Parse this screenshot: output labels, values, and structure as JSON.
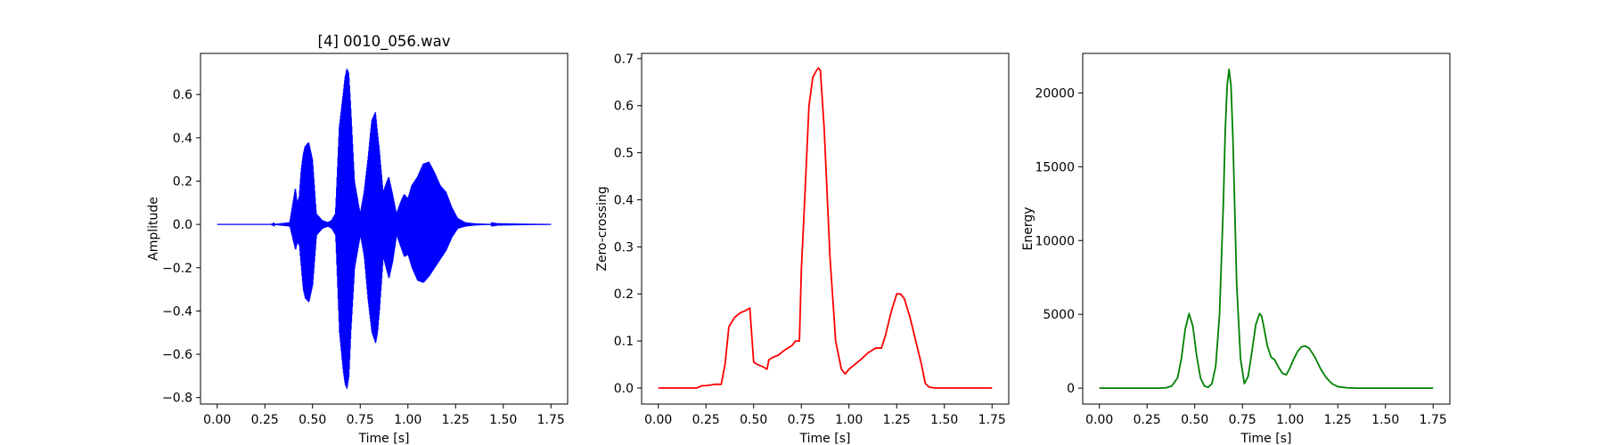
{
  "chart_data": [
    {
      "type": "line",
      "title": "[4] 0010_056.wav",
      "xlabel": "Time [s]",
      "ylabel": "Amplitude",
      "xlim": [
        -0.0875,
        1.8375
      ],
      "ylim": [
        -0.83,
        0.79
      ],
      "xticks": [
        0.0,
        0.25,
        0.5,
        0.75,
        1.0,
        1.25,
        1.5,
        1.75
      ],
      "xtick_labels": [
        "0.00",
        "0.25",
        "0.50",
        "0.75",
        "1.00",
        "1.25",
        "1.50",
        "1.75"
      ],
      "yticks": [
        -0.8,
        -0.6,
        -0.4,
        -0.2,
        0.0,
        0.2,
        0.4,
        0.6
      ],
      "ytick_labels": [
        "−0.8",
        "−0.6",
        "−0.4",
        "−0.2",
        "0.0",
        "0.2",
        "0.4",
        "0.6"
      ],
      "grid": false,
      "series": [
        {
          "color": "#0000ff",
          "style": "waveform",
          "envelope_x": [
            0.0,
            0.28,
            0.38,
            0.41,
            0.42,
            0.43,
            0.44,
            0.45,
            0.46,
            0.48,
            0.5,
            0.52,
            0.55,
            0.58,
            0.6,
            0.62,
            0.64,
            0.66,
            0.67,
            0.68,
            0.69,
            0.7,
            0.72,
            0.75,
            0.77,
            0.79,
            0.81,
            0.83,
            0.84,
            0.85,
            0.87,
            0.89,
            0.9,
            0.92,
            0.94,
            0.96,
            0.98,
            1.0,
            1.02,
            1.05,
            1.08,
            1.11,
            1.14,
            1.17,
            1.2,
            1.23,
            1.26,
            1.3,
            1.35,
            1.4,
            1.47,
            1.75
          ],
          "envelope_upper": [
            0.0,
            0.0,
            0.01,
            0.17,
            0.1,
            0.13,
            0.25,
            0.32,
            0.36,
            0.38,
            0.3,
            0.05,
            0.02,
            0.01,
            0.02,
            0.05,
            0.45,
            0.6,
            0.68,
            0.72,
            0.7,
            0.55,
            0.2,
            0.05,
            0.15,
            0.3,
            0.48,
            0.52,
            0.43,
            0.35,
            0.15,
            0.2,
            0.22,
            0.14,
            0.05,
            0.1,
            0.14,
            0.12,
            0.18,
            0.22,
            0.28,
            0.29,
            0.24,
            0.18,
            0.15,
            0.08,
            0.03,
            0.01,
            0.005,
            0.003,
            0.001,
            0.0
          ],
          "envelope_lower": [
            0.0,
            0.0,
            -0.01,
            -0.12,
            -0.08,
            -0.1,
            -0.2,
            -0.3,
            -0.34,
            -0.36,
            -0.28,
            -0.05,
            -0.02,
            -0.01,
            -0.02,
            -0.05,
            -0.5,
            -0.68,
            -0.74,
            -0.76,
            -0.7,
            -0.5,
            -0.2,
            -0.05,
            -0.15,
            -0.35,
            -0.5,
            -0.55,
            -0.5,
            -0.4,
            -0.15,
            -0.22,
            -0.25,
            -0.17,
            -0.05,
            -0.1,
            -0.15,
            -0.14,
            -0.2,
            -0.26,
            -0.27,
            -0.24,
            -0.2,
            -0.16,
            -0.12,
            -0.06,
            -0.02,
            -0.01,
            -0.005,
            -0.003,
            -0.001,
            0.0
          ]
        }
      ]
    },
    {
      "type": "line",
      "title": "",
      "xlabel": "Time [s]",
      "ylabel": "Zero-crossing",
      "xlim": [
        -0.0875,
        1.8375
      ],
      "ylim": [
        -0.034,
        0.711
      ],
      "xticks": [
        0.0,
        0.25,
        0.5,
        0.75,
        1.0,
        1.25,
        1.5,
        1.75
      ],
      "xtick_labels": [
        "0.00",
        "0.25",
        "0.50",
        "0.75",
        "1.00",
        "1.25",
        "1.50",
        "1.75"
      ],
      "yticks": [
        0.0,
        0.1,
        0.2,
        0.3,
        0.4,
        0.5,
        0.6,
        0.7
      ],
      "ytick_labels": [
        "0.0",
        "0.1",
        "0.2",
        "0.3",
        "0.4",
        "0.5",
        "0.6",
        "0.7"
      ],
      "grid": false,
      "series": [
        {
          "color": "#ff0000",
          "x": [
            0.0,
            0.2,
            0.23,
            0.25,
            0.3,
            0.33,
            0.35,
            0.37,
            0.4,
            0.43,
            0.46,
            0.48,
            0.5,
            0.52,
            0.55,
            0.57,
            0.58,
            0.6,
            0.63,
            0.66,
            0.7,
            0.72,
            0.74,
            0.75,
            0.77,
            0.79,
            0.81,
            0.83,
            0.84,
            0.85,
            0.87,
            0.9,
            0.93,
            0.96,
            0.98,
            1.0,
            1.03,
            1.06,
            1.1,
            1.14,
            1.17,
            1.19,
            1.22,
            1.25,
            1.27,
            1.29,
            1.32,
            1.35,
            1.38,
            1.4,
            1.42,
            1.45,
            1.5,
            1.75
          ],
          "values": [
            0.0,
            0.0,
            0.005,
            0.005,
            0.008,
            0.008,
            0.05,
            0.13,
            0.15,
            0.16,
            0.165,
            0.17,
            0.055,
            0.05,
            0.045,
            0.04,
            0.06,
            0.065,
            0.07,
            0.08,
            0.09,
            0.1,
            0.1,
            0.25,
            0.42,
            0.6,
            0.66,
            0.675,
            0.68,
            0.675,
            0.55,
            0.28,
            0.1,
            0.04,
            0.03,
            0.04,
            0.05,
            0.06,
            0.075,
            0.085,
            0.085,
            0.11,
            0.16,
            0.2,
            0.2,
            0.19,
            0.15,
            0.1,
            0.05,
            0.01,
            0.002,
            0.0,
            0.0,
            0.0
          ]
        }
      ]
    },
    {
      "type": "line",
      "title": "",
      "xlabel": "Time [s]",
      "ylabel": "Energy",
      "xlim": [
        -0.0875,
        1.8375
      ],
      "ylim": [
        -1080,
        22680
      ],
      "xticks": [
        0.0,
        0.25,
        0.5,
        0.75,
        1.0,
        1.25,
        1.5,
        1.75
      ],
      "xtick_labels": [
        "0.00",
        "0.25",
        "0.50",
        "0.75",
        "1.00",
        "1.25",
        "1.50",
        "1.75"
      ],
      "yticks": [
        0,
        5000,
        10000,
        15000,
        20000
      ],
      "ytick_labels": [
        "0",
        "5000",
        "10000",
        "15000",
        "20000"
      ],
      "grid": false,
      "series": [
        {
          "color": "#008000",
          "x": [
            0.0,
            0.3,
            0.35,
            0.38,
            0.41,
            0.43,
            0.45,
            0.47,
            0.49,
            0.51,
            0.53,
            0.55,
            0.57,
            0.59,
            0.61,
            0.63,
            0.65,
            0.66,
            0.67,
            0.68,
            0.69,
            0.7,
            0.71,
            0.72,
            0.74,
            0.76,
            0.78,
            0.8,
            0.82,
            0.84,
            0.85,
            0.86,
            0.88,
            0.9,
            0.92,
            0.94,
            0.96,
            0.98,
            1.0,
            1.02,
            1.04,
            1.06,
            1.08,
            1.1,
            1.13,
            1.16,
            1.19,
            1.22,
            1.25,
            1.3,
            1.35,
            1.5,
            1.75
          ],
          "values": [
            0,
            0,
            20,
            150,
            700,
            2000,
            4000,
            5050,
            4200,
            2200,
            700,
            150,
            50,
            300,
            1500,
            5000,
            12500,
            17500,
            20500,
            21600,
            20500,
            17000,
            12000,
            7000,
            2000,
            300,
            800,
            2500,
            4300,
            5050,
            4900,
            4300,
            2900,
            2100,
            1900,
            1400,
            1000,
            900,
            1400,
            2000,
            2500,
            2800,
            2850,
            2700,
            2100,
            1300,
            700,
            300,
            100,
            20,
            0,
            0,
            0
          ]
        }
      ]
    }
  ]
}
